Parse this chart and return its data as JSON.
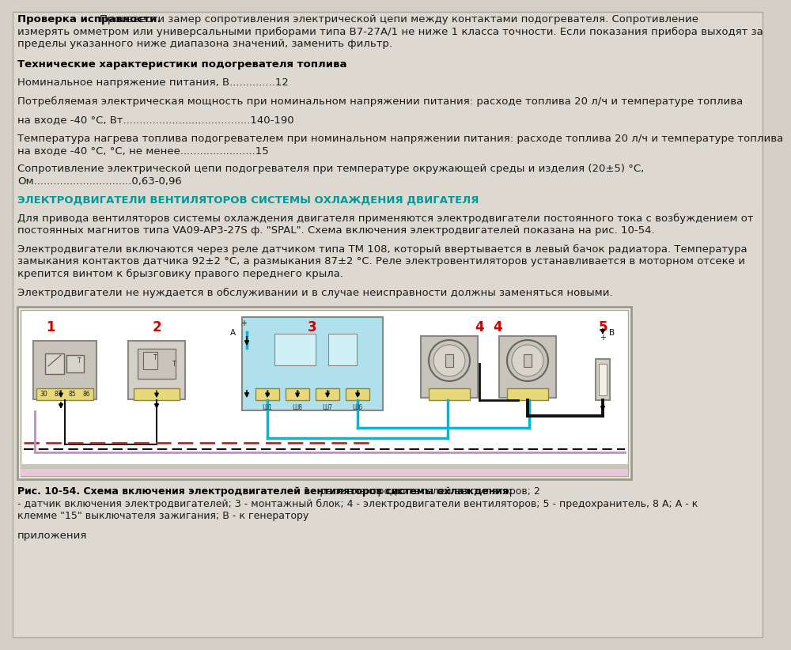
{
  "bg_color": "#d4d0c8",
  "content_bg": "#ddd9d0",
  "text_color": "#1a1a1a",
  "bold_color": "#000000",
  "cyan_heading_color": "#009999",
  "red_color": "#cc0000",
  "fs": 9.5,
  "lh": 15.5,
  "pg": 8,
  "para1_bold": "Проверка исправности.",
  "para1_l1": " Произвести замер сопротивления электрической цепи между контактами подогревателя. Сопротивление",
  "para1_l2": "измерять омметром или универсальными приборами типа В7-27А/1 не ниже 1 класса точности. Если показания прибора выходят за",
  "para1_l3": "пределы указанного ниже диапазона значений, заменить фильтр.",
  "heading1": "Технические характеристики подогревателя топлива",
  "para2": "Номинальное напряжение питания, В..............12",
  "para3": "Потребляемая электрическая мощность при номинальном напряжении питания: расходе топлива 20 л/ч и температуре топлива",
  "para4": "на входе -40 °С, Вт.......................................140-190",
  "para5l1": "Температура нагрева топлива подогревателем при номинальном напряжении питания: расходе топлива 20 л/ч и температуре топлива",
  "para5l2": "на входе -40 °С, °С, не менее.......................15",
  "para6l1": "Сопротивление электрической цепи подогревателя при температуре окружающей среды и изделия (20±5) °С,",
  "para6l2": "Ом..............................0,63-0,96",
  "heading2": "ЭЛЕКТРОДВИГАТЕЛИ ВЕНТИЛЯТОРОВ СИСТЕМЫ ОХЛАЖДЕНИЯ ДВИГАТЕЛЯ",
  "para7l1": "Для привода вентиляторов системы охлаждения двигателя применяются электродвигатели постоянного тока с возбуждением от",
  "para7l2": "постоянных магнитов типа VA09-AP3-27S ф. \"SPAL\". Схема включения электродвигателей показана на рис. 10-54.",
  "para8l1": "Электродвигатели включаются через реле датчиком типа ТМ 108, который ввертывается в левый бачок радиатора. Температура",
  "para8l2": "замыкания контактов датчика 92±2 °С, а размыкания 87±2 °С. Реле электровентиляторов устанавливается в моторном отсеке и",
  "para8l3": "крепится винтом к брызговику правого переднего крыла.",
  "para9": "Электродвигатели не нуждается в обслуживании и в случае неисправности должны заменяться новыми.",
  "cap_bold": "Рис. 10-54. Схема включения электродвигателей вентиляторов системы охлаждения:",
  "cap_r1": " 1 - реле электродвигателей вентиляторов; 2",
  "cap_r2": "- датчик включения электродвигателей; 3 - монтажный блок; 4 - электродвигатели вентиляторов; 5 - предохранитель, 8 А; А - к",
  "cap_r3": "клемме \"15\" выключателя зажигания; В - к генератору",
  "last_line": "приложения"
}
